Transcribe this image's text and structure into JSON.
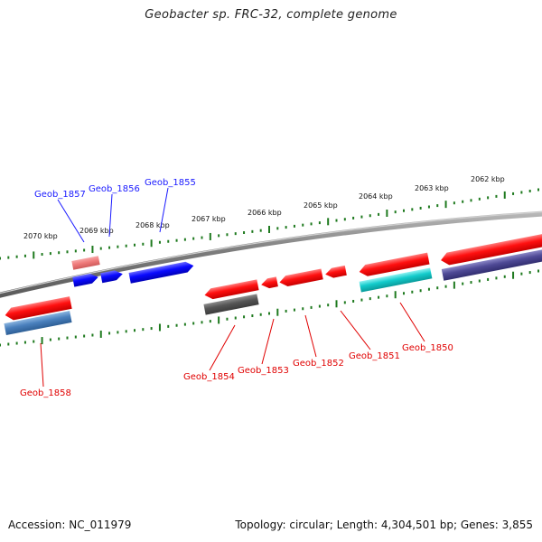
{
  "title": "Geobacter sp. FRC-32, complete genome",
  "accession": "Accession: NC_011979",
  "summary": "Topology: circular; Length: 4,304,501 bp; Genes: 3,855",
  "colors": {
    "forward_label": "#1a1aff",
    "reverse_label": "#e00000",
    "tick": "#1f7a1f",
    "backbone": "#808080"
  },
  "scale_labels": [
    "2070 kbp",
    "2069 kbp",
    "2068 kbp",
    "2067 kbp",
    "2066 kbp",
    "2065 kbp",
    "2064 kbp",
    "2063 kbp",
    "2062 kbp"
  ],
  "forward_gene_labels": [
    "Geob_1857",
    "Geob_1856",
    "Geob_1855"
  ],
  "reverse_gene_labels": [
    "Geob_1858",
    "Geob_1854",
    "Geob_1853",
    "Geob_1852",
    "Geob_1851",
    "Geob_1850"
  ]
}
